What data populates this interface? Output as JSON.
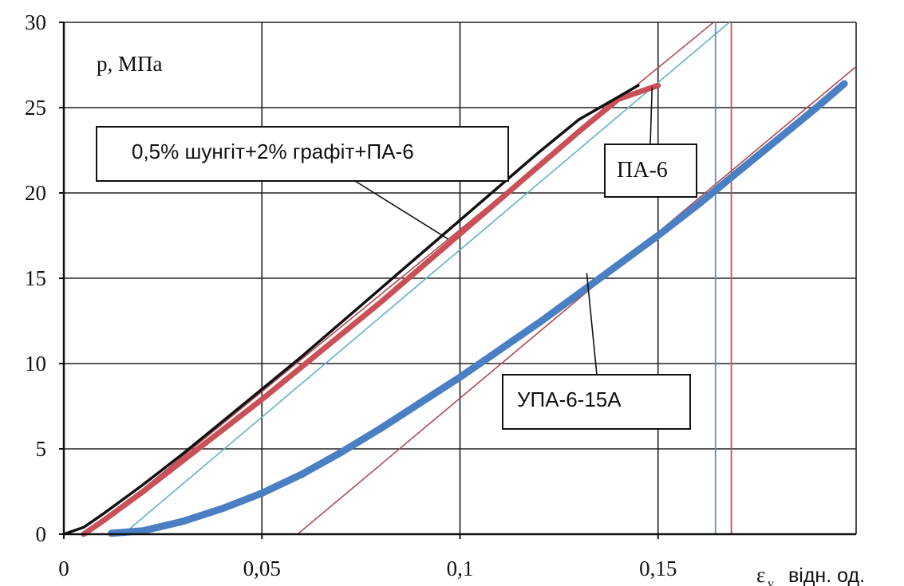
{
  "chart_data": {
    "type": "line",
    "title": "",
    "ylabel": "p, МПа",
    "xlabel_symbol": "ε",
    "xlabel_subscript": "v,",
    "xlabel_unit": "відн. од.",
    "xlim": [
      0,
      0.2
    ],
    "ylim": [
      0,
      30
    ],
    "x_ticks": [
      {
        "value": 0,
        "label": "0"
      },
      {
        "value": 0.05,
        "label": "0,05"
      },
      {
        "value": 0.1,
        "label": "0,1"
      },
      {
        "value": 0.15,
        "label": "0,15"
      }
    ],
    "y_ticks": [
      {
        "value": 0,
        "label": "0"
      },
      {
        "value": 5,
        "label": "5"
      },
      {
        "value": 10,
        "label": "10"
      },
      {
        "value": 15,
        "label": "15"
      },
      {
        "value": 20,
        "label": "20"
      },
      {
        "value": 25,
        "label": "25"
      },
      {
        "value": 30,
        "label": "30"
      }
    ],
    "grid": true,
    "series": [
      {
        "name": "ПА-6",
        "color": "#c95057",
        "points": [
          [
            0.005,
            0
          ],
          [
            0.01,
            0.8
          ],
          [
            0.02,
            2.5
          ],
          [
            0.03,
            4.3
          ],
          [
            0.04,
            6.1
          ],
          [
            0.05,
            7.9
          ],
          [
            0.06,
            9.8
          ],
          [
            0.07,
            11.7
          ],
          [
            0.08,
            13.6
          ],
          [
            0.09,
            15.6
          ],
          [
            0.1,
            17.6
          ],
          [
            0.11,
            19.6
          ],
          [
            0.12,
            21.6
          ],
          [
            0.13,
            23.6
          ],
          [
            0.14,
            25.5
          ],
          [
            0.15,
            26.3
          ]
        ]
      },
      {
        "name": "0,5% шунгіт+2% графіт+ПА-6",
        "color": "#111111",
        "points": [
          [
            0,
            0
          ],
          [
            0.005,
            0.4
          ],
          [
            0.01,
            1.2
          ],
          [
            0.02,
            2.9
          ],
          [
            0.03,
            4.7
          ],
          [
            0.04,
            6.6
          ],
          [
            0.05,
            8.5
          ],
          [
            0.06,
            10.4
          ],
          [
            0.07,
            12.4
          ],
          [
            0.08,
            14.4
          ],
          [
            0.09,
            16.4
          ],
          [
            0.1,
            18.4
          ],
          [
            0.11,
            20.4
          ],
          [
            0.12,
            22.4
          ],
          [
            0.13,
            24.3
          ],
          [
            0.145,
            26.3
          ]
        ]
      },
      {
        "name": "УПА-6-15А",
        "color": "#4a7fc4",
        "points": [
          [
            0.012,
            0.05
          ],
          [
            0.02,
            0.2
          ],
          [
            0.03,
            0.75
          ],
          [
            0.04,
            1.5
          ],
          [
            0.05,
            2.4
          ],
          [
            0.06,
            3.5
          ],
          [
            0.07,
            4.8
          ],
          [
            0.08,
            6.2
          ],
          [
            0.09,
            7.7
          ],
          [
            0.1,
            9.2
          ],
          [
            0.11,
            10.8
          ],
          [
            0.12,
            12.4
          ],
          [
            0.13,
            14.1
          ],
          [
            0.14,
            15.8
          ],
          [
            0.15,
            17.5
          ],
          [
            0.16,
            19.3
          ],
          [
            0.17,
            21.2
          ],
          [
            0.18,
            23.1
          ],
          [
            0.19,
            25.0
          ],
          [
            0.197,
            26.4
          ]
        ]
      }
    ],
    "tangents": [
      {
        "color": "#b04a4f",
        "from": [
          0.006,
          0
        ],
        "to": [
          0.164,
          30
        ]
      },
      {
        "color": "#5fb0cf",
        "from": [
          0.015,
          0
        ],
        "to": [
          0.168,
          30
        ]
      },
      {
        "color": "#b04a4f",
        "from": [
          0.059,
          0
        ],
        "to": [
          0.202,
          27.8
        ]
      }
    ],
    "verticals": [
      {
        "color": "#5b8bd6",
        "x": 0.1645
      },
      {
        "color": "#c95057",
        "x": 0.1685
      }
    ],
    "annotations": [
      {
        "id": "pa6-shungite",
        "text": "0,5% шунгіт+2% графіт+ПА-6",
        "target": [
          0.097,
          17.3
        ]
      },
      {
        "id": "pa6",
        "text": "ПА-6",
        "target": [
          0.1485,
          26.2
        ]
      },
      {
        "id": "upa6",
        "text": "УПА-6-15А",
        "target": [
          0.132,
          15.3
        ]
      }
    ]
  }
}
